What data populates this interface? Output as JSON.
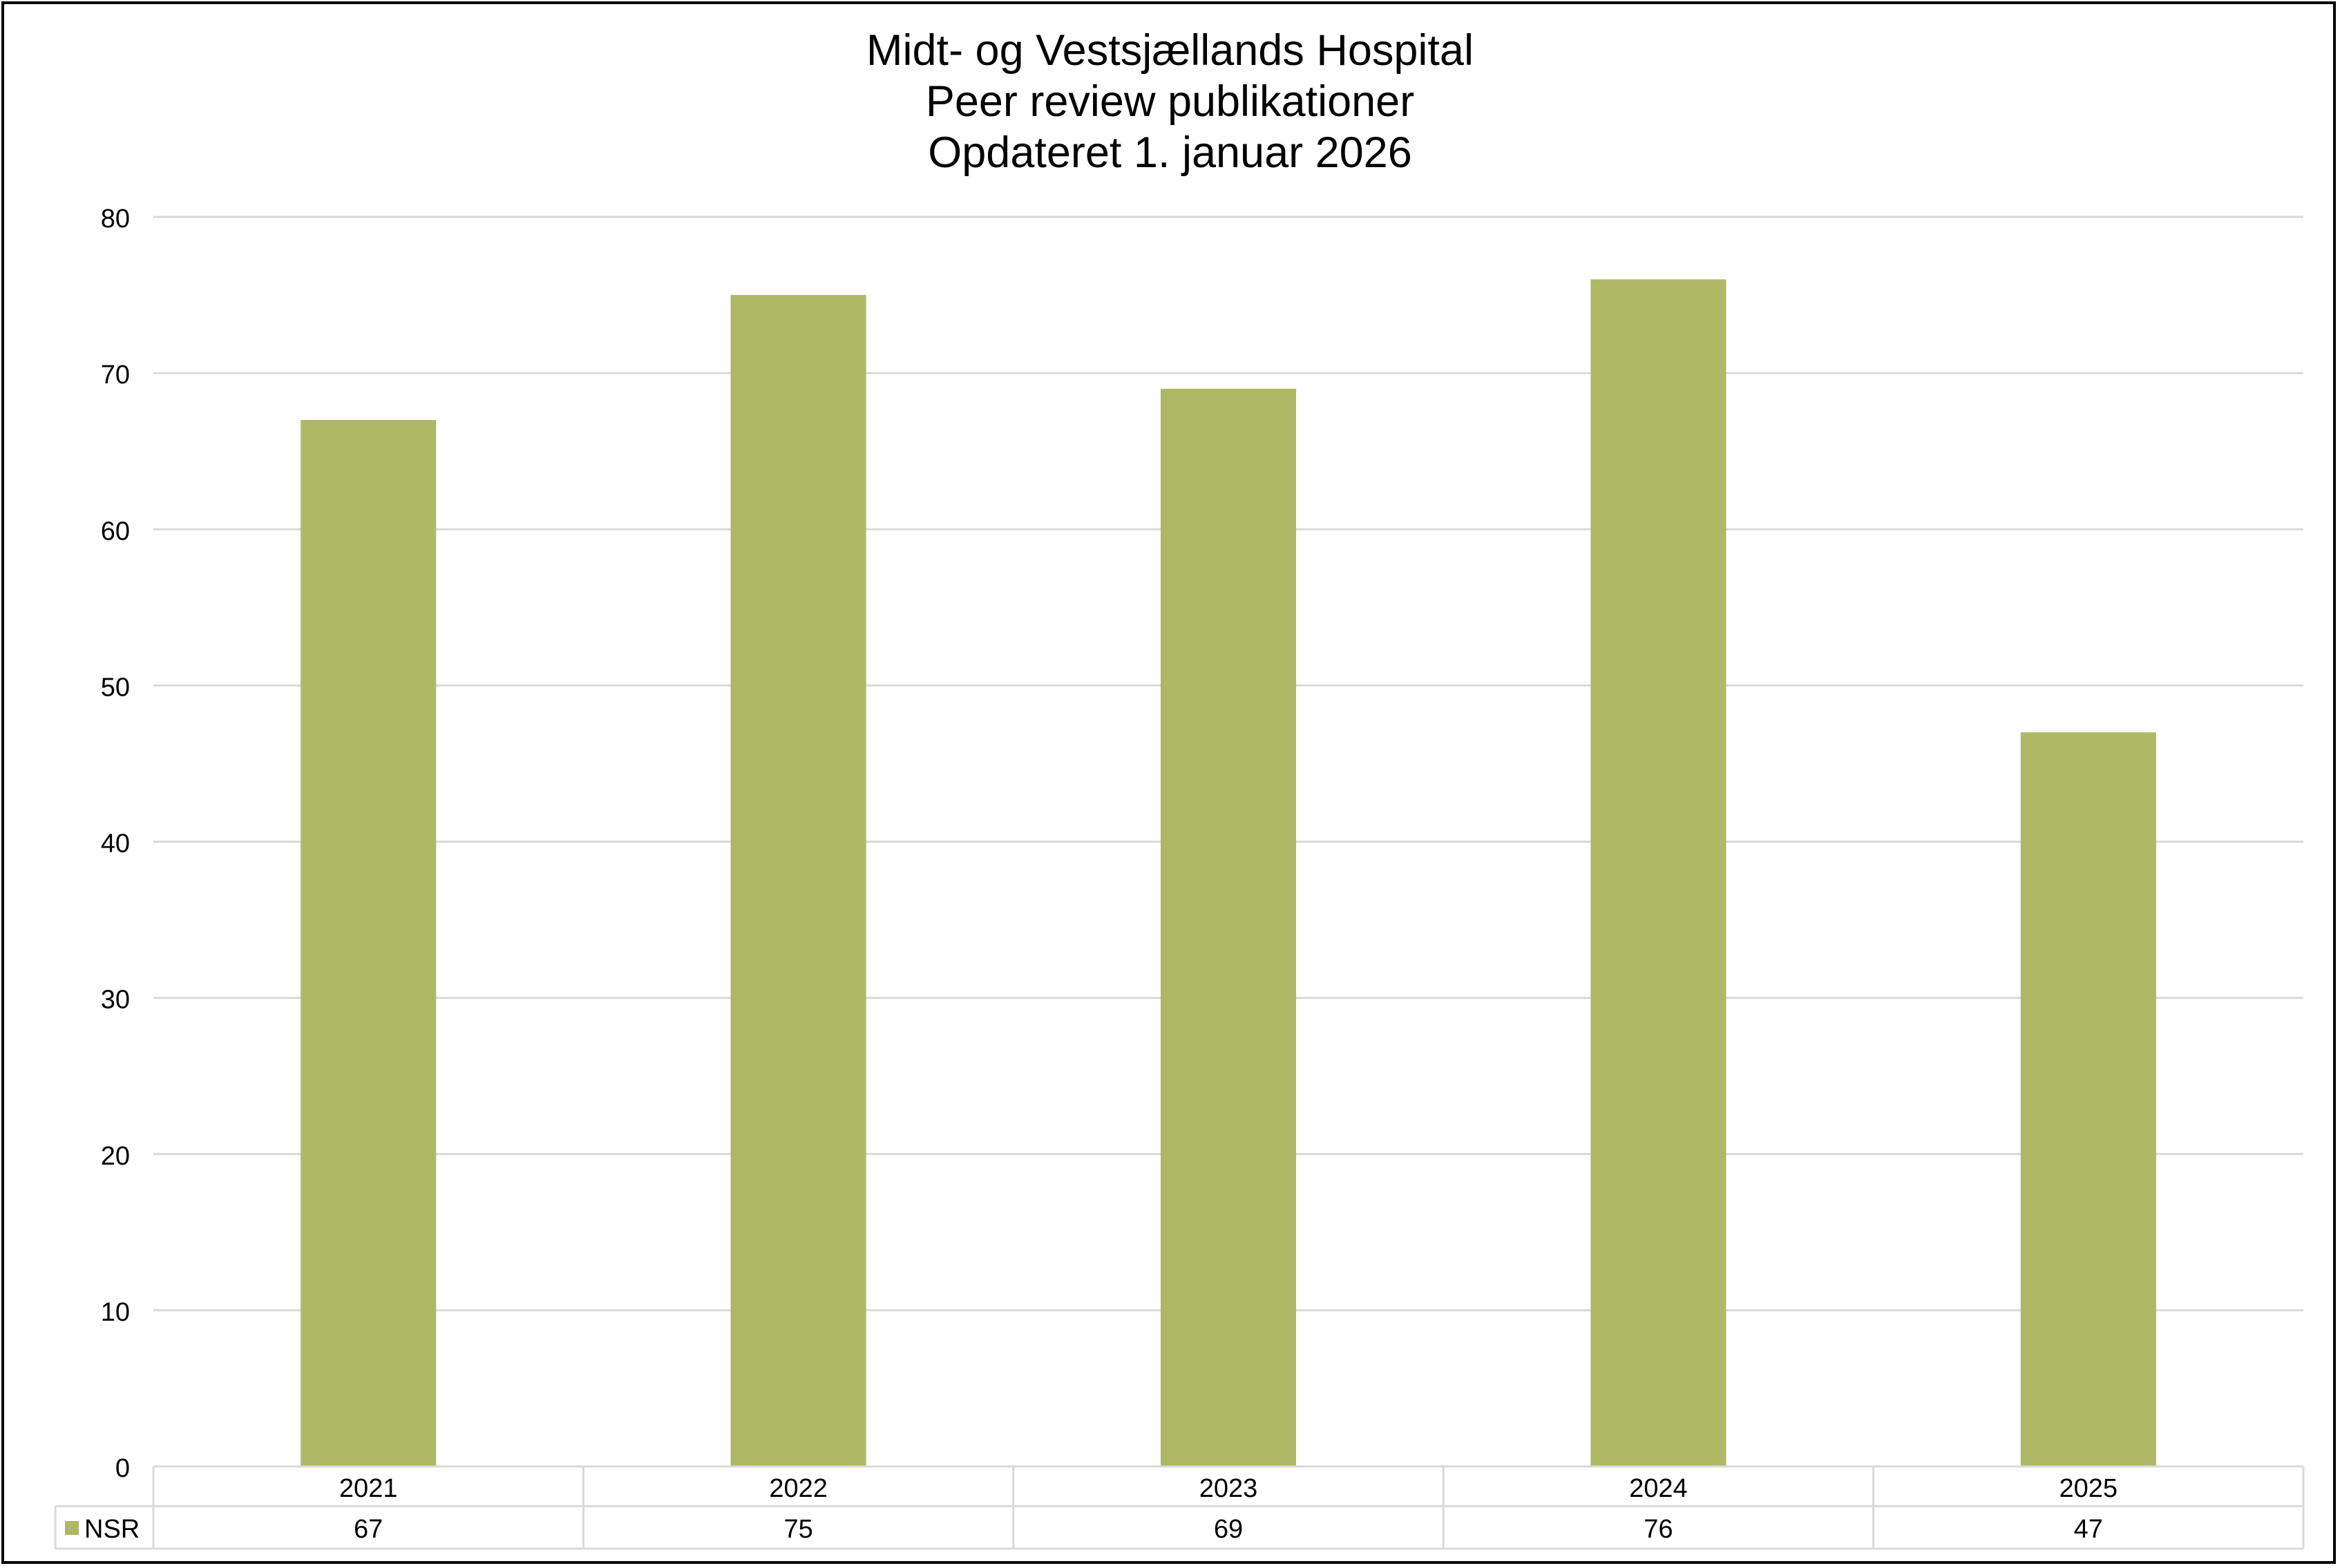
{
  "title_lines": [
    "Midt- og Vestsjællands Hospital",
    "Peer review publikationer",
    "Opdateret 1. januar 2026"
  ],
  "colors": {
    "bar": "#afb864",
    "gridline": "#d9d9d9",
    "table_border": "#d9d9d9",
    "text": "#000000",
    "frame": "#000000"
  },
  "chart_data": {
    "type": "bar",
    "title": "Midt- og Vestsjællands Hospital\nPeer review publikationer\nOpdateret 1. januar 2026",
    "categories": [
      "2021",
      "2022",
      "2023",
      "2024",
      "2025"
    ],
    "series": [
      {
        "name": "NSR",
        "values": [
          67,
          75,
          69,
          76,
          47
        ]
      }
    ],
    "y_ticks": [
      0,
      10,
      20,
      30,
      40,
      50,
      60,
      70,
      80
    ],
    "ylim": [
      0,
      80
    ],
    "grid": true,
    "legend": "data-table-left",
    "data_table": true
  }
}
